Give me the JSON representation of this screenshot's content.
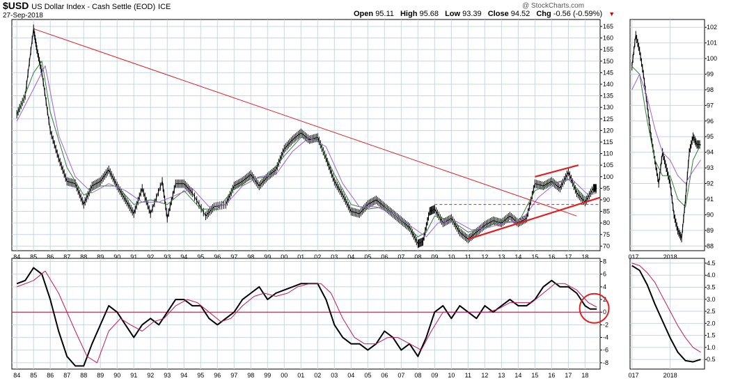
{
  "header": {
    "symbol": "$USD",
    "description": "US Dollar Index - Cash Settle (EOD)",
    "exchange": "ICE",
    "date": "27-Sep-2018",
    "open_label": "Open",
    "open": "95.11",
    "high_label": "High",
    "high": "95.68",
    "low_label": "Low",
    "low": "93.39",
    "close_label": "Close",
    "close": "94.52",
    "chg_label": "Chg",
    "chg": "-0.56 (-0.59%)",
    "chg_arrow": "▼",
    "brand": "@ StockCharts.com"
  },
  "colors": {
    "price": "#000000",
    "ma_short": "#2e7d32",
    "ma_long": "#a060d0",
    "trendline": "#e02020",
    "pmo": "#000000",
    "pmo_signal": "#c0185a",
    "zero_line": "#b01030",
    "grid": "#c8d4e6"
  },
  "chart_data": [
    {
      "type": "line",
      "panel": "main-price",
      "x_ticks": [
        "84",
        "85",
        "86",
        "87",
        "88",
        "89",
        "90",
        "91",
        "92",
        "93",
        "94",
        "95",
        "96",
        "97",
        "98",
        "99",
        "00",
        "01",
        "02",
        "03",
        "04",
        "05",
        "06",
        "07",
        "08",
        "09",
        "10",
        "11",
        "12",
        "13",
        "14",
        "15",
        "16",
        "17",
        "18"
      ],
      "y_ticks": [
        70,
        75,
        80,
        85,
        90,
        95,
        100,
        105,
        110,
        115,
        120,
        125,
        130,
        135,
        140,
        145,
        150,
        155,
        160,
        165
      ],
      "ylim": [
        68,
        168
      ],
      "xlim": [
        1983.7,
        2018.9
      ],
      "series": [
        {
          "role": "price",
          "x": [
            1984.0,
            1984.5,
            1985.0,
            1985.2,
            1985.5,
            1986.0,
            1986.5,
            1987.0,
            1987.5,
            1988.0,
            1988.5,
            1989.0,
            1989.5,
            1990.0,
            1990.5,
            1991.0,
            1991.5,
            1992.0,
            1992.7,
            1993.0,
            1993.5,
            1994.0,
            1994.5,
            1995.3,
            1995.8,
            1996.5,
            1997.0,
            1997.5,
            1998.0,
            1998.5,
            1999.0,
            1999.5,
            2000.0,
            2000.5,
            2001.0,
            2001.5,
            2002.0,
            2002.5,
            2003.0,
            2003.5,
            2004.0,
            2004.5,
            2005.0,
            2005.5,
            2006.0,
            2006.5,
            2007.0,
            2007.5,
            2008.0,
            2008.3,
            2008.7,
            2009.0,
            2009.5,
            2010.0,
            2010.5,
            2011.0,
            2011.5,
            2012.0,
            2012.5,
            2013.0,
            2013.5,
            2014.0,
            2014.5,
            2015.0,
            2015.5,
            2016.0,
            2016.5,
            2017.0,
            2017.5,
            2018.0,
            2018.5,
            2018.7
          ],
          "values": [
            127,
            135,
            164,
            155,
            145,
            120,
            108,
            98,
            97,
            88,
            96,
            98,
            103,
            96,
            90,
            84,
            95,
            84,
            98,
            82,
            97,
            97,
            93,
            83,
            87,
            88,
            96,
            98,
            101,
            96,
            100,
            103,
            112,
            116,
            119,
            116,
            117,
            108,
            98,
            92,
            85,
            84,
            88,
            90,
            87,
            84,
            81,
            78,
            71,
            72,
            85,
            86,
            80,
            82,
            76,
            73,
            76,
            79,
            81,
            80,
            83,
            80,
            82,
            97,
            96,
            98,
            95,
            102,
            93,
            89,
            95,
            95
          ]
        },
        {
          "role": "ma_short",
          "x": [
            1984.0,
            1985.0,
            1985.5,
            1986.0,
            1987.0,
            1988.0,
            1989.0,
            1990.0,
            1991.0,
            1992.0,
            1993.0,
            1994.0,
            1995.0,
            1996.0,
            1997.0,
            1998.0,
            1999.0,
            2000.0,
            2001.0,
            2002.0,
            2003.0,
            2004.0,
            2005.0,
            2006.0,
            2007.0,
            2008.0,
            2008.5,
            2009.0,
            2010.0,
            2011.0,
            2012.0,
            2013.0,
            2014.0,
            2015.0,
            2016.0,
            2017.0,
            2018.0,
            2018.7
          ],
          "values": [
            126,
            145,
            150,
            128,
            104,
            92,
            96,
            96,
            88,
            90,
            88,
            94,
            86,
            86,
            95,
            99,
            100,
            109,
            117,
            116,
            101,
            88,
            86,
            87,
            81,
            74,
            76,
            83,
            81,
            76,
            78,
            81,
            80,
            94,
            97,
            99,
            91,
            94
          ]
        },
        {
          "role": "ma_long",
          "x": [
            1984.0,
            1985.0,
            1985.7,
            1986.5,
            1987.5,
            1988.5,
            1989.5,
            1990.5,
            1991.5,
            1992.5,
            1993.5,
            1994.5,
            1995.5,
            1996.5,
            1997.5,
            1998.5,
            1999.5,
            2000.5,
            2001.5,
            2002.5,
            2003.5,
            2004.5,
            2005.5,
            2006.5,
            2007.5,
            2008.5,
            2009.2,
            2010.2,
            2011.2,
            2012.2,
            2013.2,
            2014.2,
            2015.2,
            2016.2,
            2017.2,
            2018.2,
            2018.7
          ],
          "values": [
            124,
            138,
            148,
            118,
            100,
            93,
            97,
            94,
            89,
            89,
            92,
            95,
            87,
            88,
            96,
            100,
            101,
            111,
            117,
            113,
            97,
            87,
            87,
            84,
            79,
            74,
            80,
            81,
            77,
            78,
            80,
            81,
            91,
            97,
            99,
            92,
            93
          ]
        },
        {
          "role": "trendline-down",
          "x": [
            1985.0,
            2017.5
          ],
          "values": [
            164,
            83
          ]
        },
        {
          "role": "trendline-up",
          "x": [
            2011.0,
            2018.9
          ],
          "values": [
            73,
            91
          ]
        },
        {
          "role": "channel-top",
          "x": [
            2015.0,
            2017.6
          ],
          "values": [
            100,
            105
          ]
        },
        {
          "role": "support-dashed",
          "x": [
            2009.0,
            2018.8
          ],
          "values": [
            88,
            88
          ]
        }
      ]
    },
    {
      "type": "line",
      "panel": "main-pmo",
      "x_ticks": [
        "84",
        "85",
        "86",
        "87",
        "88",
        "89",
        "90",
        "91",
        "92",
        "93",
        "94",
        "95",
        "96",
        "97",
        "98",
        "99",
        "00",
        "01",
        "02",
        "03",
        "04",
        "05",
        "06",
        "07",
        "08",
        "09",
        "10",
        "11",
        "12",
        "13",
        "14",
        "15",
        "16",
        "17",
        "18"
      ],
      "y_ticks": [
        -8,
        -6,
        -4,
        -2,
        0,
        2,
        4,
        6,
        8
      ],
      "ylim": [
        -9,
        8.5
      ],
      "xlim": [
        1983.7,
        2018.9
      ],
      "series": [
        {
          "role": "pmo",
          "x": [
            1984.0,
            1984.5,
            1985.0,
            1985.5,
            1986.0,
            1986.5,
            1987.0,
            1987.5,
            1988.0,
            1988.5,
            1989.0,
            1989.5,
            1990.0,
            1990.5,
            1991.0,
            1991.5,
            1992.0,
            1992.5,
            1993.0,
            1993.5,
            1994.0,
            1994.5,
            1995.0,
            1995.5,
            1996.0,
            1996.5,
            1997.0,
            1997.5,
            1998.0,
            1998.5,
            1999.0,
            1999.5,
            2000.0,
            2000.5,
            2001.0,
            2001.5,
            2002.0,
            2002.5,
            2003.0,
            2003.5,
            2004.0,
            2004.5,
            2005.0,
            2005.5,
            2006.0,
            2006.5,
            2007.0,
            2007.5,
            2008.0,
            2008.5,
            2009.0,
            2009.5,
            2010.0,
            2010.5,
            2011.0,
            2011.5,
            2012.0,
            2012.5,
            2013.0,
            2013.5,
            2014.0,
            2014.5,
            2015.0,
            2015.5,
            2016.0,
            2016.5,
            2017.0,
            2017.5,
            2018.0,
            2018.3,
            2018.7
          ],
          "values": [
            4.5,
            5,
            7,
            6,
            2,
            -3,
            -7,
            -8.5,
            -8.5,
            -5,
            -2,
            1,
            0,
            -2,
            -4,
            -2,
            -1,
            -2,
            0,
            2,
            2,
            1,
            1,
            -1,
            -2,
            -1,
            0,
            2,
            3,
            4,
            2,
            3,
            3.5,
            4,
            4.5,
            4.5,
            4.5,
            2,
            -2,
            -4,
            -5,
            -5,
            -6,
            -5,
            -3,
            -4,
            -6,
            -5,
            -7,
            -4,
            0,
            1,
            -1,
            1,
            0,
            -1,
            1,
            0,
            1,
            2,
            1,
            1,
            2,
            4,
            5,
            4,
            4,
            3,
            1,
            0.5,
            0.5
          ]
        },
        {
          "role": "signal",
          "x": [
            1984.0,
            1985.0,
            1985.7,
            1986.5,
            1987.5,
            1988.2,
            1988.8,
            1989.5,
            1990.2,
            1990.8,
            1991.5,
            1992.2,
            1992.8,
            1993.5,
            1994.2,
            1994.8,
            1995.5,
            1996.2,
            1996.8,
            1997.5,
            1998.2,
            1998.8,
            1999.5,
            2000.2,
            2000.8,
            2001.5,
            2002.2,
            2002.8,
            2003.5,
            2004.2,
            2004.8,
            2005.5,
            2006.2,
            2006.8,
            2007.5,
            2008.2,
            2008.8,
            2009.5,
            2010.2,
            2010.8,
            2011.5,
            2012.2,
            2012.8,
            2013.5,
            2014.2,
            2014.8,
            2015.5,
            2016.2,
            2016.8,
            2017.5,
            2018.2,
            2018.7
          ],
          "values": [
            4,
            5,
            6.5,
            3,
            -3,
            -7,
            -8,
            -3,
            -1,
            -2,
            -3,
            -1.5,
            -1,
            1,
            2,
            1.5,
            0,
            -1.5,
            -1,
            1,
            2.5,
            3,
            2.5,
            3,
            4,
            4.5,
            4.5,
            3,
            -1,
            -4,
            -5,
            -5,
            -4,
            -4,
            -5,
            -6,
            -3,
            0,
            0,
            0,
            0,
            0,
            0.5,
            1.5,
            1.5,
            1.5,
            3,
            4.5,
            4.5,
            3.5,
            1.5,
            0.8
          ]
        }
      ]
    },
    {
      "type": "line",
      "panel": "side-price",
      "x_ticks": [
        "017",
        "2018"
      ],
      "y_ticks": [
        88,
        89,
        90,
        91,
        92,
        93,
        94,
        95,
        96,
        97,
        98,
        99,
        100,
        101,
        102
      ],
      "ylim": [
        87.7,
        102.5
      ],
      "xlim": [
        2016.95,
        2018.9
      ],
      "series": [
        {
          "role": "price",
          "x": [
            2017.0,
            2017.1,
            2017.2,
            2017.3,
            2017.4,
            2017.5,
            2017.6,
            2017.7,
            2017.8,
            2017.9,
            2018.0,
            2018.1,
            2018.2,
            2018.3,
            2018.4,
            2018.5,
            2018.6,
            2018.7,
            2018.8
          ],
          "values": [
            99.5,
            101.5,
            100.5,
            99,
            97,
            95,
            93.5,
            92,
            94,
            93,
            92,
            90,
            89,
            88.5,
            91,
            94,
            95,
            94.5,
            94.5
          ]
        },
        {
          "role": "ma_short",
          "x": [
            2017.0,
            2017.2,
            2017.4,
            2017.6,
            2017.8,
            2018.0,
            2018.2,
            2018.4,
            2018.6,
            2018.8
          ],
          "values": [
            99.5,
            99,
            96,
            93.5,
            92.5,
            92.5,
            91,
            90.5,
            93.5,
            94.5
          ]
        },
        {
          "role": "ma_long",
          "x": [
            2017.0,
            2017.2,
            2017.4,
            2017.6,
            2017.8,
            2018.0,
            2018.2,
            2018.4,
            2018.6,
            2018.8
          ],
          "values": [
            98,
            99,
            97.5,
            95.5,
            94,
            93.5,
            92.5,
            92,
            92.8,
            93.5
          ]
        }
      ]
    },
    {
      "type": "line",
      "panel": "side-pmo",
      "x_ticks": [
        "017",
        "2018"
      ],
      "y_ticks": [
        0.5,
        1.0,
        1.5,
        2.0,
        2.5,
        3.0,
        3.5,
        4.0,
        4.5
      ],
      "ylim": [
        0.1,
        4.7
      ],
      "xlim": [
        2016.95,
        2018.9
      ],
      "series": [
        {
          "role": "pmo",
          "x": [
            2017.0,
            2017.2,
            2017.4,
            2017.6,
            2017.8,
            2018.0,
            2018.2,
            2018.4,
            2018.6,
            2018.8
          ],
          "values": [
            4.4,
            4.2,
            3.6,
            2.8,
            2.1,
            1.4,
            0.8,
            0.45,
            0.4,
            0.5
          ]
        },
        {
          "role": "signal",
          "x": [
            2017.0,
            2017.2,
            2017.4,
            2017.6,
            2017.8,
            2018.0,
            2018.2,
            2018.4,
            2018.6,
            2018.8
          ],
          "values": [
            4.5,
            4.4,
            4.1,
            3.7,
            3.1,
            2.5,
            1.9,
            1.4,
            1.0,
            0.8
          ]
        }
      ]
    }
  ]
}
